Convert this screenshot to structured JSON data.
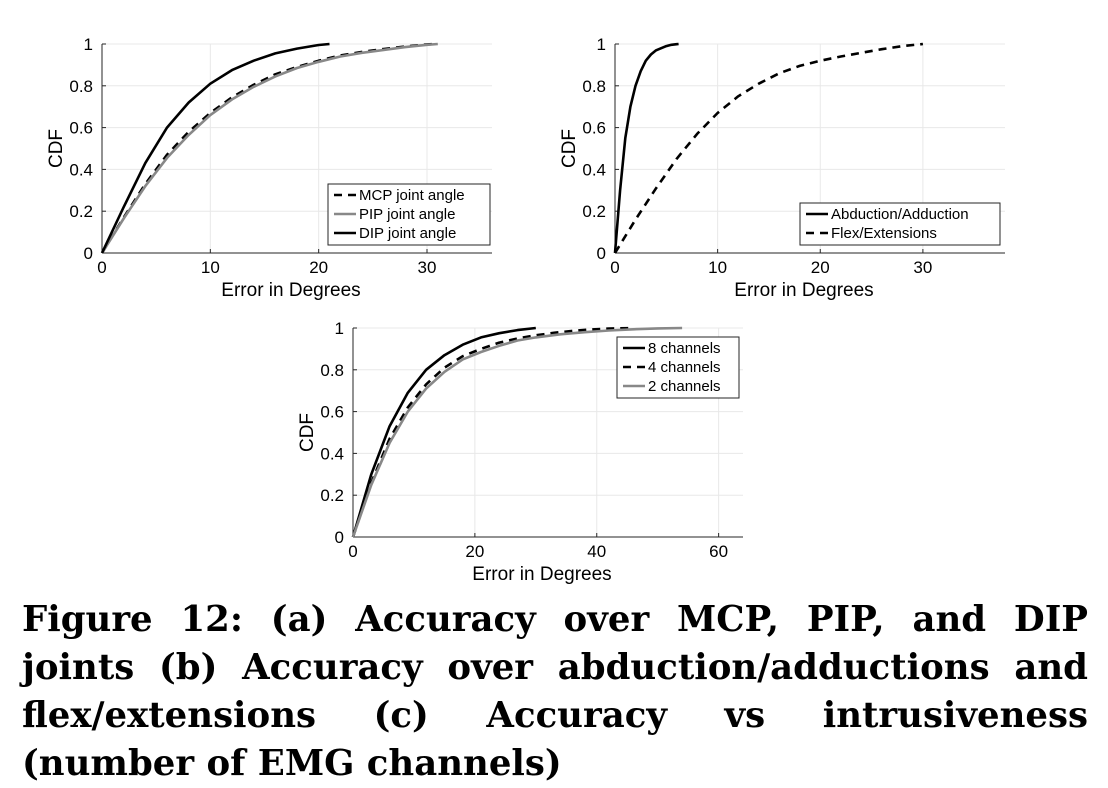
{
  "caption": "Figure 12: (a) Accuracy over MCP, PIP, and DIP joints (b) Accuracy over abduction/adductions and flex/extensions (c) Accuracy vs intrusiveness (number of EMG channels)",
  "chart_data": [
    {
      "id": "a",
      "type": "line",
      "xlabel": "Error in Degrees",
      "ylabel": "CDF",
      "xlim": [
        0,
        36
      ],
      "ylim": [
        0,
        1
      ],
      "xticks": [
        0,
        10,
        20,
        30
      ],
      "yticks": [
        0,
        0.2,
        0.4,
        0.6,
        0.8,
        1
      ],
      "grid": true,
      "legend_position": "bottom-right",
      "series": [
        {
          "name": "MCP joint angle",
          "style": "dashed",
          "color": "#000000",
          "x": [
            0,
            2,
            4,
            6,
            8,
            10,
            12,
            14,
            16,
            18,
            20,
            22,
            24,
            26,
            28,
            30,
            31
          ],
          "y": [
            0,
            0.17,
            0.33,
            0.47,
            0.58,
            0.67,
            0.745,
            0.805,
            0.855,
            0.89,
            0.92,
            0.945,
            0.962,
            0.976,
            0.988,
            0.998,
            1
          ]
        },
        {
          "name": "PIP joint angle",
          "style": "solid",
          "color": "#888888",
          "x": [
            0,
            2,
            4,
            6,
            8,
            10,
            12,
            14,
            16,
            18,
            20,
            22,
            24,
            26,
            28,
            30,
            31
          ],
          "y": [
            0,
            0.165,
            0.32,
            0.455,
            0.565,
            0.66,
            0.735,
            0.795,
            0.845,
            0.885,
            0.915,
            0.94,
            0.958,
            0.972,
            0.985,
            0.996,
            1
          ]
        },
        {
          "name": "DIP joint angle",
          "style": "solid",
          "color": "#000000",
          "x": [
            0,
            2,
            4,
            6,
            8,
            10,
            12,
            14,
            16,
            18,
            20,
            21
          ],
          "y": [
            0,
            0.22,
            0.43,
            0.6,
            0.72,
            0.81,
            0.875,
            0.92,
            0.955,
            0.978,
            0.995,
            1
          ]
        }
      ]
    },
    {
      "id": "b",
      "type": "line",
      "xlabel": "Error in Degrees",
      "ylabel": "CDF",
      "xlim": [
        0,
        38
      ],
      "ylim": [
        0,
        1
      ],
      "xticks": [
        0,
        10,
        20,
        30
      ],
      "yticks": [
        0,
        0.2,
        0.4,
        0.6,
        0.8,
        1
      ],
      "grid": true,
      "legend_position": "bottom-right",
      "series": [
        {
          "name": "Abduction/Adduction",
          "style": "solid",
          "color": "#000000",
          "x": [
            0,
            0.5,
            1,
            1.5,
            2,
            2.5,
            3,
            3.5,
            4,
            4.5,
            5,
            5.5,
            6,
            6.2
          ],
          "y": [
            0,
            0.3,
            0.55,
            0.7,
            0.8,
            0.87,
            0.92,
            0.95,
            0.97,
            0.98,
            0.99,
            0.996,
            0.999,
            1
          ]
        },
        {
          "name": "Flex/Extensions",
          "style": "dashed",
          "color": "#000000",
          "x": [
            0,
            2,
            4,
            6,
            8,
            10,
            12,
            14,
            16,
            18,
            20,
            22,
            24,
            26,
            28,
            30
          ],
          "y": [
            0,
            0.16,
            0.31,
            0.45,
            0.57,
            0.67,
            0.75,
            0.81,
            0.86,
            0.895,
            0.92,
            0.94,
            0.958,
            0.975,
            0.99,
            1
          ]
        }
      ]
    },
    {
      "id": "c",
      "type": "line",
      "xlabel": "Error in Degrees",
      "ylabel": "CDF",
      "xlim": [
        0,
        64
      ],
      "ylim": [
        0,
        1
      ],
      "xticks": [
        0,
        20,
        40,
        60
      ],
      "yticks": [
        0,
        0.2,
        0.4,
        0.6,
        0.8,
        1
      ],
      "grid": true,
      "legend_position": "top-right",
      "series": [
        {
          "name": "8 channels",
          "style": "solid",
          "color": "#000000",
          "x": [
            0,
            3,
            6,
            9,
            12,
            15,
            18,
            21,
            24,
            27,
            30
          ],
          "y": [
            0,
            0.3,
            0.53,
            0.69,
            0.8,
            0.87,
            0.92,
            0.955,
            0.975,
            0.99,
            1
          ]
        },
        {
          "name": "4 channels",
          "style": "dashed",
          "color": "#000000",
          "x": [
            0,
            3,
            6,
            9,
            12,
            15,
            18,
            21,
            24,
            27,
            30,
            33,
            36,
            39,
            42,
            46
          ],
          "y": [
            0,
            0.26,
            0.47,
            0.62,
            0.73,
            0.81,
            0.865,
            0.9,
            0.93,
            0.95,
            0.965,
            0.977,
            0.986,
            0.993,
            0.997,
            1
          ]
        },
        {
          "name": "2 channels",
          "style": "solid",
          "color": "#888888",
          "x": [
            0,
            3,
            6,
            9,
            12,
            15,
            18,
            21,
            24,
            27,
            30,
            34,
            38,
            42,
            46,
            50,
            54
          ],
          "y": [
            0,
            0.25,
            0.45,
            0.6,
            0.71,
            0.79,
            0.85,
            0.885,
            0.915,
            0.94,
            0.955,
            0.97,
            0.98,
            0.988,
            0.994,
            0.998,
            1
          ]
        }
      ]
    }
  ]
}
